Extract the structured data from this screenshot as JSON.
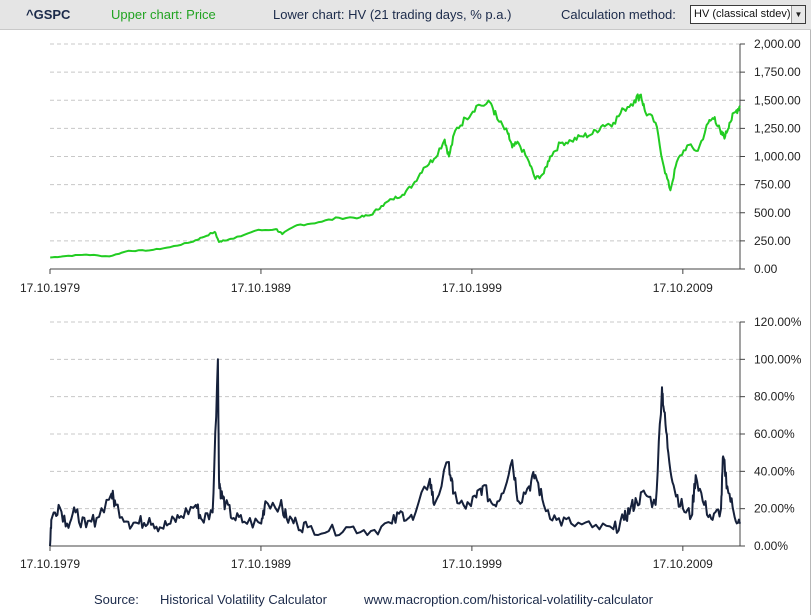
{
  "header": {
    "ticker": "^GSPC",
    "upper_chart_label": "Upper chart: Price",
    "lower_chart_label": "Lower chart: HV (21 trading days, % p.a.)",
    "calculation_method_label": "Calculation method:",
    "calculation_method_value": "HV (classical stdev)",
    "dropdown_icon": "triangle-down-icon"
  },
  "footer": {
    "source_label": "Source:",
    "source_name": "Historical Volatility Calculator",
    "source_url": "www.macroption.com/historical-volatility-calculator"
  },
  "colors": {
    "price_line": "#22cc22",
    "hv_line": "#16213b",
    "grid": "#c8c8c8",
    "header_bg": "#e5e5e5",
    "upper_label": "#22a322",
    "header_text": "#1b2a4a"
  },
  "chart_data": [
    {
      "type": "line",
      "title": "",
      "xlabel": "",
      "ylabel": "",
      "x_tick_labels": [
        "17.10.1979",
        "17.10.1989",
        "17.10.1999",
        "17.10.2009"
      ],
      "x_tick_years": [
        1979.79,
        1989.79,
        1999.79,
        2009.79
      ],
      "xlim": [
        1979.79,
        2012.5
      ],
      "ylim": [
        0,
        2000
      ],
      "y_tick_labels": [
        "0.00",
        "250.00",
        "500.00",
        "750.00",
        "1,000.00",
        "1,250.00",
        "1,500.00",
        "1,750.00",
        "2,000.00"
      ],
      "grid": true,
      "series": [
        {
          "x": [
            1979.8,
            1980.5,
            1981.5,
            1982.6,
            1983.5,
            1984.5,
            1985.5,
            1986.5,
            1987.0,
            1987.6,
            1987.8,
            1988.0,
            1988.5,
            1989.5,
            1990.5,
            1990.8,
            1991.5,
            1992.5,
            1993.5,
            1994.5,
            1995.0,
            1995.5,
            1996.0,
            1996.5,
            1997.0,
            1997.5,
            1998.0,
            1998.5,
            1998.7,
            1999.0,
            1999.5,
            2000.0,
            2000.7,
            2001.0,
            2001.5,
            2001.7,
            2002.0,
            2002.5,
            2002.8,
            2003.2,
            2003.5,
            2004.0,
            2004.5,
            2005.0,
            2005.5,
            2006.0,
            2006.5,
            2007.0,
            2007.5,
            2007.8,
            2008.0,
            2008.5,
            2008.9,
            2009.2,
            2009.5,
            2010.0,
            2010.5,
            2011.0,
            2011.3,
            2011.6,
            2011.8,
            2012.0,
            2012.3,
            2012.5
          ],
          "values": [
            102,
            115,
            128,
            112,
            162,
            165,
            195,
            240,
            280,
            330,
            240,
            255,
            270,
            340,
            355,
            310,
            390,
            415,
            455,
            460,
            480,
            560,
            620,
            660,
            750,
            900,
            980,
            1150,
            1000,
            1230,
            1340,
            1450,
            1470,
            1330,
            1200,
            1080,
            1120,
            950,
            800,
            850,
            1000,
            1120,
            1140,
            1180,
            1200,
            1280,
            1300,
            1420,
            1500,
            1550,
            1400,
            1300,
            900,
            700,
            950,
            1100,
            1050,
            1300,
            1350,
            1200,
            1180,
            1300,
            1400,
            1450
          ]
        }
      ]
    },
    {
      "type": "line",
      "title": "",
      "xlabel": "",
      "ylabel": "",
      "x_tick_labels": [
        "17.10.1979",
        "17.10.1989",
        "17.10.1999",
        "17.10.2009"
      ],
      "x_tick_years": [
        1979.79,
        1989.79,
        1999.79,
        2009.79
      ],
      "xlim": [
        1979.79,
        2012.5
      ],
      "ylim": [
        0,
        120
      ],
      "y_tick_labels": [
        "0.00%",
        "20.00%",
        "40.00%",
        "60.00%",
        "80.00%",
        "100.00%",
        "120.00%"
      ],
      "grid": true,
      "series": [
        {
          "x": [
            1979.79,
            1979.85,
            1980.2,
            1980.6,
            1981.0,
            1981.5,
            1982.0,
            1982.7,
            1982.9,
            1983.5,
            1984.0,
            1984.5,
            1985.0,
            1985.5,
            1986.0,
            1986.7,
            1987.0,
            1987.5,
            1987.75,
            1987.8,
            1987.9,
            1988.1,
            1988.5,
            1989.0,
            1989.8,
            1990.0,
            1990.7,
            1991.0,
            1991.5,
            1992.0,
            1993.0,
            1994.0,
            1995.0,
            1996.0,
            1996.5,
            1997.0,
            1997.8,
            1998.0,
            1998.7,
            1998.9,
            1999.5,
            2000.0,
            2000.3,
            2000.8,
            2001.2,
            2001.7,
            2002.0,
            2002.5,
            2002.8,
            2003.2,
            2003.8,
            2004.5,
            2005.5,
            2006.5,
            2007.0,
            2007.3,
            2007.6,
            2008.0,
            2008.5,
            2008.8,
            2008.9,
            2009.1,
            2009.4,
            2009.8,
            2010.2,
            2010.4,
            2010.8,
            2011.2,
            2011.6,
            2011.7,
            2011.9,
            2012.2,
            2012.5
          ],
          "values": [
            0,
            14,
            22,
            12,
            18,
            10,
            15,
            28,
            22,
            13,
            12,
            15,
            10,
            12,
            16,
            22,
            14,
            18,
            100,
            36,
            28,
            22,
            15,
            13,
            12,
            24,
            22,
            15,
            12,
            10,
            8,
            10,
            8,
            12,
            18,
            14,
            36,
            22,
            45,
            28,
            20,
            26,
            32,
            22,
            28,
            46,
            24,
            32,
            38,
            22,
            14,
            12,
            10,
            9,
            14,
            20,
            24,
            28,
            22,
            85,
            72,
            50,
            30,
            20,
            16,
            38,
            22,
            14,
            20,
            48,
            32,
            18,
            12
          ]
        }
      ]
    }
  ]
}
